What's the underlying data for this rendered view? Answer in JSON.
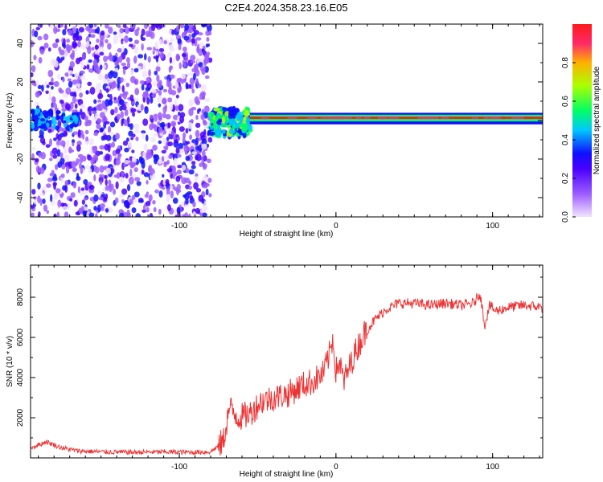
{
  "title": "C2E4.2024.358.23.16.E05",
  "chart_data": [
    {
      "type": "heatmap",
      "xlabel": "Height of straight line (km)",
      "ylabel": "Frequency (Hz)",
      "xlim": [
        -195,
        132
      ],
      "ylim": [
        -50,
        50
      ],
      "xticks": [
        -100,
        0,
        100
      ],
      "xtick_labels": [
        "-100",
        "0",
        "100"
      ],
      "yticks": [
        -40,
        -20,
        0,
        20,
        40
      ],
      "ytick_labels": [
        "-40",
        "-20",
        "0",
        "20",
        "40"
      ],
      "colorbar": {
        "label": "Normalized spectral amplitude",
        "ticks": [
          0.0,
          0.2,
          0.4,
          0.6,
          0.8
        ],
        "tick_labels": [
          "0.0",
          "0.2",
          "0.4",
          "0.6",
          "0.8"
        ],
        "range": [
          0,
          1
        ],
        "colormap": [
          "#f2e4ff",
          "#9c5cff",
          "#4a00ff",
          "#1010ff",
          "#00c8ff",
          "#00ff66",
          "#aaff00",
          "#ffb000",
          "#ff2a6a",
          "#ff1a1a"
        ]
      },
      "regions": [
        {
          "label": "noise",
          "x": [
            -195,
            -80
          ],
          "y": [
            -50,
            50
          ],
          "amplitude": 0.15
        },
        {
          "label": "signal onset",
          "x": [
            -80,
            -55
          ],
          "y": [
            -8,
            6
          ],
          "amplitude": 0.55
        },
        {
          "label": "carrier",
          "x": [
            -55,
            132
          ],
          "y": [
            -1,
            3
          ],
          "amplitude": 0.95
        }
      ],
      "grid": false
    },
    {
      "type": "line",
      "xlabel": "Height of straight line (km)",
      "ylabel": "SNR (10 * v/v)",
      "xlim": [
        -195,
        132
      ],
      "ylim": [
        0,
        9600
      ],
      "xticks": [
        -100,
        0,
        100
      ],
      "xtick_labels": [
        "-100",
        "0",
        "100"
      ],
      "yticks": [
        2000,
        4000,
        6000,
        8000
      ],
      "ytick_labels": [
        "2000",
        "4000",
        "6000",
        "8000"
      ],
      "color": "#ee3333",
      "series": [
        {
          "x": [
            -195,
            -185,
            -175,
            -165,
            -150,
            -130,
            -110,
            -90,
            -80,
            -72,
            -68,
            -62,
            -55,
            -48,
            -40,
            -30,
            -22,
            -15,
            -8,
            -4,
            -2,
            0,
            2,
            5,
            8,
            12,
            18,
            25,
            32,
            40,
            50,
            60,
            70,
            80,
            88,
            92,
            95,
            98,
            102,
            110,
            120,
            132
          ],
          "y": [
            500,
            800,
            500,
            350,
            300,
            280,
            300,
            280,
            300,
            800,
            2500,
            2000,
            2200,
            2800,
            3000,
            3200,
            3600,
            3800,
            4200,
            5200,
            6000,
            4300,
            4800,
            3800,
            4400,
            5200,
            6200,
            6900,
            7400,
            7700,
            7700,
            7600,
            7700,
            7600,
            7700,
            8200,
            6600,
            7600,
            7300,
            7500,
            7600,
            7500
          ]
        }
      ],
      "grid": false
    }
  ]
}
